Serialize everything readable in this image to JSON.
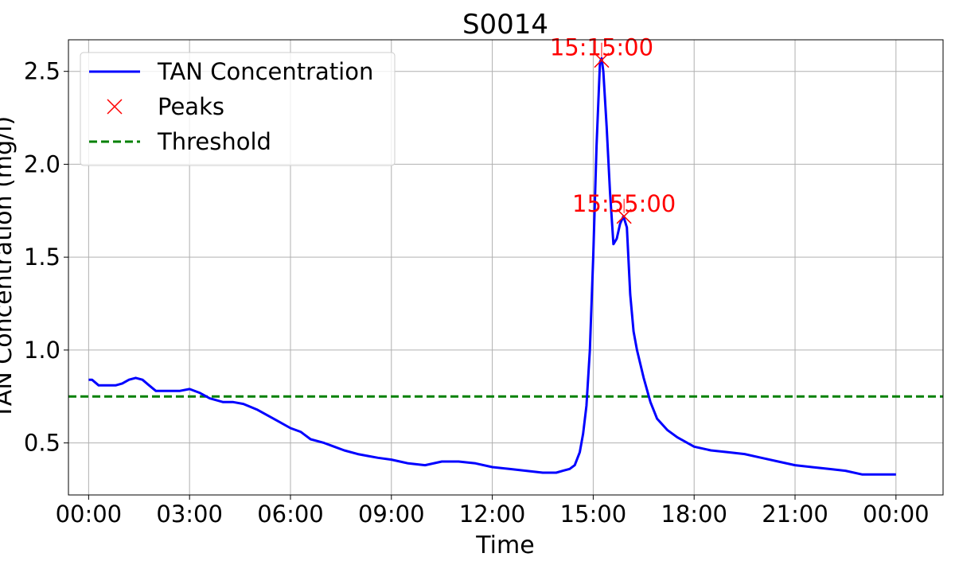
{
  "chart_data": {
    "type": "line",
    "title": "S0014",
    "xlabel": "Time",
    "ylabel": "TAN Concentration (mg/l)",
    "xlim_hours": [
      -0.6,
      25.4
    ],
    "ylim": [
      0.22,
      2.67
    ],
    "x_ticks": [
      {
        "hour": 0,
        "label": "00:00"
      },
      {
        "hour": 3,
        "label": "03:00"
      },
      {
        "hour": 6,
        "label": "06:00"
      },
      {
        "hour": 9,
        "label": "09:00"
      },
      {
        "hour": 12,
        "label": "12:00"
      },
      {
        "hour": 15,
        "label": "15:00"
      },
      {
        "hour": 18,
        "label": "18:00"
      },
      {
        "hour": 21,
        "label": "21:00"
      },
      {
        "hour": 24,
        "label": "00:00"
      }
    ],
    "y_ticks": [
      {
        "value": 0.5,
        "label": "0.5"
      },
      {
        "value": 1.0,
        "label": "1.0"
      },
      {
        "value": 1.5,
        "label": "1.5"
      },
      {
        "value": 2.0,
        "label": "2.0"
      },
      {
        "value": 2.5,
        "label": "2.5"
      }
    ],
    "grid": true,
    "legend_position": "top-left",
    "series": [
      {
        "name": "TAN Concentration",
        "color": "#0000ff",
        "kind": "line",
        "x_hours": [
          0,
          0.1,
          0.3,
          0.5,
          0.8,
          1.0,
          1.2,
          1.4,
          1.6,
          1.8,
          2.0,
          2.3,
          2.7,
          3.0,
          3.3,
          3.6,
          4.0,
          4.3,
          4.6,
          5.0,
          5.3,
          5.6,
          6.0,
          6.3,
          6.6,
          7.0,
          7.3,
          7.6,
          8.0,
          8.3,
          8.6,
          9.0,
          9.5,
          10.0,
          10.5,
          11.0,
          11.5,
          12.0,
          12.5,
          13.0,
          13.5,
          13.9,
          14.1,
          14.3,
          14.45,
          14.6,
          14.7,
          14.8,
          14.9,
          15.0,
          15.1,
          15.2,
          15.25,
          15.3,
          15.4,
          15.5,
          15.6,
          15.7,
          15.8,
          15.9,
          16.0,
          16.1,
          16.2,
          16.3,
          16.5,
          16.7,
          16.9,
          17.2,
          17.5,
          18.0,
          18.5,
          19.0,
          19.5,
          20.0,
          20.5,
          21.0,
          21.5,
          22.0,
          22.5,
          23.0,
          24.0
        ],
        "y": [
          0.84,
          0.84,
          0.81,
          0.81,
          0.81,
          0.82,
          0.84,
          0.85,
          0.84,
          0.81,
          0.78,
          0.78,
          0.78,
          0.79,
          0.77,
          0.74,
          0.72,
          0.72,
          0.71,
          0.68,
          0.65,
          0.62,
          0.58,
          0.56,
          0.52,
          0.5,
          0.48,
          0.46,
          0.44,
          0.43,
          0.42,
          0.41,
          0.39,
          0.38,
          0.4,
          0.4,
          0.39,
          0.37,
          0.36,
          0.35,
          0.34,
          0.34,
          0.35,
          0.36,
          0.38,
          0.45,
          0.55,
          0.7,
          1.0,
          1.5,
          2.1,
          2.55,
          2.57,
          2.5,
          2.2,
          1.85,
          1.57,
          1.6,
          1.68,
          1.72,
          1.66,
          1.3,
          1.1,
          1.0,
          0.85,
          0.72,
          0.63,
          0.57,
          0.53,
          0.48,
          0.46,
          0.45,
          0.44,
          0.42,
          0.4,
          0.38,
          0.37,
          0.36,
          0.35,
          0.33,
          0.33
        ]
      },
      {
        "name": "Peaks",
        "color": "#ff0000",
        "kind": "marker",
        "points": [
          {
            "hour": 15.25,
            "value": 2.56,
            "label": "15:15:00"
          },
          {
            "hour": 15.9167,
            "value": 1.72,
            "label": "15:55:00"
          }
        ]
      },
      {
        "name": "Threshold",
        "color": "#008000",
        "kind": "hline",
        "value": 0.75
      }
    ]
  }
}
